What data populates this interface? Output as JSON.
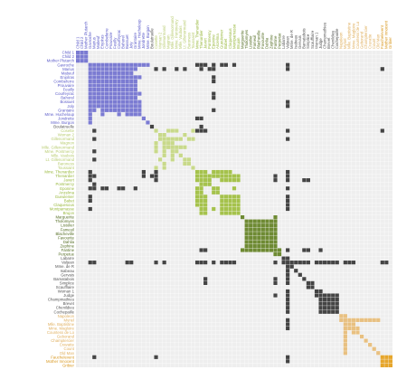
{
  "colors": {
    "background_cell": "#eeeeee",
    "default_cell": "#444444",
    "group_1": "#7b7bd2",
    "group_2": "#c8d98a",
    "group_3": "#a5c24c",
    "group_4": "#6e8a33",
    "group_5": "#e8c080",
    "group_6": "#e6a62c",
    "label_other": "#555555",
    "label_group_1": "#5a5ac8",
    "label_group_2": "#b8cc70",
    "label_group_3": "#98b83c",
    "label_group_4": "#556e24",
    "label_group_5": "#e0b060",
    "label_group_6": "#d89820"
  },
  "chart_data": {
    "type": "heatmap",
    "title": "",
    "xlabel": "",
    "ylabel": "",
    "labels": [
      "Child 1",
      "Child 2",
      "Mother Plutarch",
      "Gavroche",
      "Marius",
      "Mabeuf",
      "Enjolras",
      "Combeferre",
      "Prouvaire",
      "Feuilly",
      "Courfeyrac",
      "Bahorel",
      "Bossuet",
      "Joly",
      "Grantaire",
      "Mme. Hucheloup",
      "Jondrette",
      "Mme. Burgon",
      "Boulatruelle",
      "Cosette",
      "Woman 2",
      "Gillenormand",
      "Magnon",
      "Mlle. Gillenormand",
      "Mme. Pontmercy",
      "Mlle. Vaubois",
      "Lt. Gillenormand",
      "Baroness",
      "Toussaint",
      "Mme. Thenardier",
      "Thenardier",
      "Javert",
      "Pontmercy",
      "Eponine",
      "Anzelma",
      "Gueulemer",
      "Babet",
      "Claquesous",
      "Montparnasse",
      "Brujon",
      "Marguerite",
      "Tholomyes",
      "Listolier",
      "Fameuil",
      "Blacheville",
      "Favourite",
      "Dahlia",
      "Zephine",
      "Fantine",
      "Perpetue",
      "Labarre",
      "Valjean",
      "Mme. de R",
      "Isabeau",
      "Gervais",
      "Bamatabois",
      "Simplice",
      "Scaufflaire",
      "Woman 1",
      "Judge",
      "Champmathieu",
      "Brevet",
      "Chenildieu",
      "Cochepaille",
      "Napoleon",
      "Myriel",
      "Mlle. Baptistine",
      "Mme. Magloire",
      "Countess de Lo",
      "Geborand",
      "Champtercier",
      "Cravatte",
      "Count",
      "Old Man",
      "Fauchelevent",
      "Mother Innocent",
      "Gribier"
    ],
    "groups": [
      1,
      1,
      1,
      2,
      2,
      2,
      2,
      2,
      2,
      2,
      2,
      2,
      2,
      2,
      2,
      2,
      2,
      2,
      0,
      3,
      3,
      3,
      3,
      3,
      3,
      3,
      3,
      3,
      3,
      4,
      4,
      4,
      4,
      4,
      4,
      4,
      4,
      4,
      4,
      4,
      5,
      5,
      5,
      5,
      5,
      5,
      5,
      5,
      5,
      5,
      0,
      0,
      0,
      0,
      0,
      0,
      0,
      0,
      0,
      0,
      0,
      0,
      0,
      0,
      6,
      6,
      6,
      6,
      6,
      6,
      6,
      6,
      6,
      6,
      7,
      7,
      7
    ],
    "cells": [
      [
        0,
        1,
        1
      ],
      [
        0,
        2,
        1
      ],
      [
        1,
        2,
        1
      ],
      [
        3,
        4,
        1
      ],
      [
        3,
        5,
        1
      ],
      [
        3,
        6,
        1
      ],
      [
        3,
        7,
        1
      ],
      [
        3,
        8,
        1
      ],
      [
        3,
        9,
        1
      ],
      [
        3,
        10,
        1
      ],
      [
        3,
        11,
        1
      ],
      [
        3,
        12,
        1
      ],
      [
        3,
        13,
        1
      ],
      [
        3,
        14,
        1
      ],
      [
        3,
        15,
        1
      ],
      [
        3,
        16,
        1
      ],
      [
        3,
        17,
        1
      ],
      [
        4,
        5,
        1
      ],
      [
        4,
        6,
        1
      ],
      [
        4,
        7,
        1
      ],
      [
        4,
        8,
        1
      ],
      [
        4,
        9,
        1
      ],
      [
        4,
        10,
        1
      ],
      [
        4,
        11,
        1
      ],
      [
        4,
        12,
        1
      ],
      [
        4,
        13,
        1
      ],
      [
        4,
        14,
        1
      ],
      [
        5,
        6,
        1
      ],
      [
        5,
        7,
        1
      ],
      [
        5,
        8,
        1
      ],
      [
        5,
        9,
        1
      ],
      [
        5,
        10,
        1
      ],
      [
        5,
        11,
        1
      ],
      [
        5,
        12,
        1
      ],
      [
        5,
        13,
        1
      ],
      [
        6,
        7,
        1
      ],
      [
        6,
        8,
        1
      ],
      [
        6,
        9,
        1
      ],
      [
        6,
        10,
        1
      ],
      [
        6,
        11,
        1
      ],
      [
        6,
        12,
        1
      ],
      [
        6,
        13,
        1
      ],
      [
        6,
        14,
        1
      ],
      [
        6,
        15,
        1
      ],
      [
        7,
        8,
        1
      ],
      [
        7,
        9,
        1
      ],
      [
        7,
        10,
        1
      ],
      [
        7,
        11,
        1
      ],
      [
        7,
        12,
        1
      ],
      [
        7,
        13,
        1
      ],
      [
        7,
        14,
        1
      ],
      [
        8,
        9,
        1
      ],
      [
        8,
        10,
        1
      ],
      [
        8,
        11,
        1
      ],
      [
        8,
        12,
        1
      ],
      [
        8,
        13,
        1
      ],
      [
        8,
        14,
        1
      ],
      [
        9,
        10,
        1
      ],
      [
        9,
        11,
        1
      ],
      [
        9,
        12,
        1
      ],
      [
        9,
        13,
        1
      ],
      [
        9,
        14,
        1
      ],
      [
        10,
        11,
        1
      ],
      [
        10,
        12,
        1
      ],
      [
        10,
        13,
        1
      ],
      [
        10,
        14,
        1
      ],
      [
        10,
        15,
        1
      ],
      [
        11,
        12,
        1
      ],
      [
        11,
        13,
        1
      ],
      [
        11,
        14,
        1
      ],
      [
        12,
        13,
        1
      ],
      [
        12,
        14,
        1
      ],
      [
        12,
        15,
        1
      ],
      [
        13,
        14,
        1
      ],
      [
        13,
        15,
        1
      ],
      [
        14,
        15,
        1
      ],
      [
        19,
        22,
        1
      ],
      [
        19,
        23,
        1
      ],
      [
        19,
        24,
        1
      ],
      [
        19,
        28,
        1
      ],
      [
        20,
        21,
        1
      ],
      [
        20,
        26,
        1
      ],
      [
        21,
        22,
        1
      ],
      [
        21,
        23,
        1
      ],
      [
        21,
        24,
        1
      ],
      [
        21,
        25,
        1
      ],
      [
        21,
        27,
        1
      ],
      [
        21,
        28,
        1
      ],
      [
        22,
        23,
        1
      ],
      [
        23,
        24,
        1
      ],
      [
        23,
        25,
        1
      ],
      [
        23,
        26,
        1
      ],
      [
        26,
        27,
        1
      ],
      [
        29,
        30,
        1
      ],
      [
        29,
        31,
        1
      ],
      [
        29,
        33,
        1
      ],
      [
        29,
        34,
        1
      ],
      [
        29,
        35,
        1
      ],
      [
        29,
        36,
        1
      ],
      [
        29,
        37,
        1
      ],
      [
        30,
        31,
        1
      ],
      [
        30,
        32,
        1
      ],
      [
        30,
        33,
        1
      ],
      [
        30,
        34,
        1
      ],
      [
        30,
        35,
        1
      ],
      [
        30,
        36,
        1
      ],
      [
        30,
        37,
        1
      ],
      [
        30,
        38,
        1
      ],
      [
        30,
        39,
        1
      ],
      [
        31,
        32,
        1
      ],
      [
        31,
        35,
        1
      ],
      [
        31,
        36,
        1
      ],
      [
        31,
        37,
        1
      ],
      [
        31,
        38,
        1
      ],
      [
        31,
        39,
        1
      ],
      [
        33,
        34,
        1
      ],
      [
        33,
        38,
        1
      ],
      [
        35,
        36,
        1
      ],
      [
        35,
        37,
        1
      ],
      [
        35,
        38,
        1
      ],
      [
        35,
        39,
        1
      ],
      [
        36,
        37,
        1
      ],
      [
        36,
        38,
        1
      ],
      [
        36,
        39,
        1
      ],
      [
        37,
        38,
        1
      ],
      [
        37,
        39,
        1
      ],
      [
        38,
        39,
        1
      ],
      [
        40,
        48,
        1
      ],
      [
        41,
        42,
        1
      ],
      [
        41,
        43,
        1
      ],
      [
        41,
        44,
        1
      ],
      [
        41,
        45,
        1
      ],
      [
        41,
        46,
        1
      ],
      [
        41,
        47,
        1
      ],
      [
        41,
        48,
        1
      ],
      [
        42,
        43,
        1
      ],
      [
        42,
        44,
        1
      ],
      [
        42,
        45,
        1
      ],
      [
        42,
        46,
        1
      ],
      [
        42,
        47,
        1
      ],
      [
        42,
        48,
        1
      ],
      [
        43,
        44,
        1
      ],
      [
        43,
        45,
        1
      ],
      [
        43,
        46,
        1
      ],
      [
        43,
        47,
        1
      ],
      [
        43,
        48,
        1
      ],
      [
        44,
        45,
        1
      ],
      [
        44,
        46,
        1
      ],
      [
        44,
        47,
        1
      ],
      [
        44,
        48,
        1
      ],
      [
        45,
        46,
        1
      ],
      [
        45,
        47,
        1
      ],
      [
        45,
        48,
        1
      ],
      [
        46,
        47,
        1
      ],
      [
        46,
        48,
        1
      ],
      [
        47,
        48,
        1
      ],
      [
        48,
        49,
        1
      ],
      [
        56,
        57,
        1
      ],
      [
        58,
        59,
        1
      ],
      [
        59,
        60,
        1
      ],
      [
        59,
        61,
        1
      ],
      [
        59,
        62,
        1
      ],
      [
        59,
        63,
        1
      ],
      [
        60,
        61,
        1
      ],
      [
        60,
        62,
        1
      ],
      [
        60,
        63,
        1
      ],
      [
        61,
        62,
        1
      ],
      [
        61,
        63,
        1
      ],
      [
        62,
        63,
        1
      ],
      [
        65,
        66,
        1
      ],
      [
        65,
        67,
        1
      ],
      [
        65,
        68,
        1
      ],
      [
        65,
        69,
        1
      ],
      [
        65,
        70,
        1
      ],
      [
        65,
        71,
        1
      ],
      [
        65,
        72,
        1
      ],
      [
        65,
        73,
        1
      ],
      [
        65,
        64,
        1
      ],
      [
        66,
        67,
        1
      ],
      [
        67,
        68,
        1
      ],
      [
        74,
        75,
        1
      ],
      [
        74,
        76,
        1
      ],
      [
        75,
        76,
        1
      ],
      [
        51,
        3,
        1
      ],
      [
        51,
        4,
        1
      ],
      [
        51,
        19,
        1
      ],
      [
        51,
        21,
        1
      ],
      [
        51,
        29,
        1
      ],
      [
        51,
        30,
        1
      ],
      [
        51,
        31,
        1
      ],
      [
        51,
        33,
        1
      ],
      [
        51,
        35,
        1
      ],
      [
        51,
        36,
        1
      ],
      [
        51,
        37,
        1
      ],
      [
        51,
        38,
        1
      ],
      [
        51,
        48,
        1
      ],
      [
        51,
        50,
        1
      ],
      [
        51,
        52,
        1
      ],
      [
        51,
        53,
        1
      ],
      [
        51,
        54,
        1
      ],
      [
        51,
        55,
        1
      ],
      [
        51,
        56,
        1
      ],
      [
        51,
        58,
        1
      ],
      [
        51,
        59,
        1
      ],
      [
        51,
        60,
        1
      ],
      [
        51,
        61,
        1
      ],
      [
        51,
        62,
        1
      ],
      [
        51,
        63,
        1
      ],
      [
        51,
        65,
        1
      ],
      [
        51,
        66,
        1
      ],
      [
        51,
        67,
        1
      ],
      [
        51,
        74,
        1
      ],
      [
        51,
        75,
        1
      ],
      [
        3,
        31,
        1
      ],
      [
        3,
        33,
        1
      ],
      [
        3,
        29,
        1
      ],
      [
        3,
        30,
        1
      ],
      [
        3,
        35,
        1
      ],
      [
        3,
        36,
        1
      ],
      [
        3,
        38,
        1
      ],
      [
        4,
        19,
        1
      ],
      [
        4,
        21,
        1
      ],
      [
        4,
        24,
        1
      ],
      [
        4,
        26,
        1
      ],
      [
        4,
        30,
        1
      ],
      [
        4,
        32,
        1
      ],
      [
        4,
        33,
        1
      ],
      [
        19,
        29,
        1
      ],
      [
        19,
        30,
        1
      ],
      [
        19,
        31,
        1
      ],
      [
        19,
        74,
        1
      ],
      [
        18,
        30,
        1
      ],
      [
        16,
        29,
        1
      ],
      [
        16,
        30,
        1
      ],
      [
        31,
        48,
        1
      ],
      [
        31,
        55,
        1
      ],
      [
        31,
        56,
        1
      ],
      [
        30,
        48,
        1
      ],
      [
        30,
        38,
        1
      ],
      [
        14,
        33,
        1
      ],
      [
        11,
        33,
        1
      ],
      [
        6,
        33,
        1
      ],
      [
        7,
        33,
        1
      ],
      [
        10,
        33,
        1
      ],
      [
        13,
        51,
        1
      ],
      [
        12,
        51,
        1
      ],
      [
        4,
        74,
        1
      ],
      [
        48,
        55,
        1
      ],
      [
        48,
        56,
        1
      ],
      [
        48,
        59,
        1
      ]
    ]
  }
}
